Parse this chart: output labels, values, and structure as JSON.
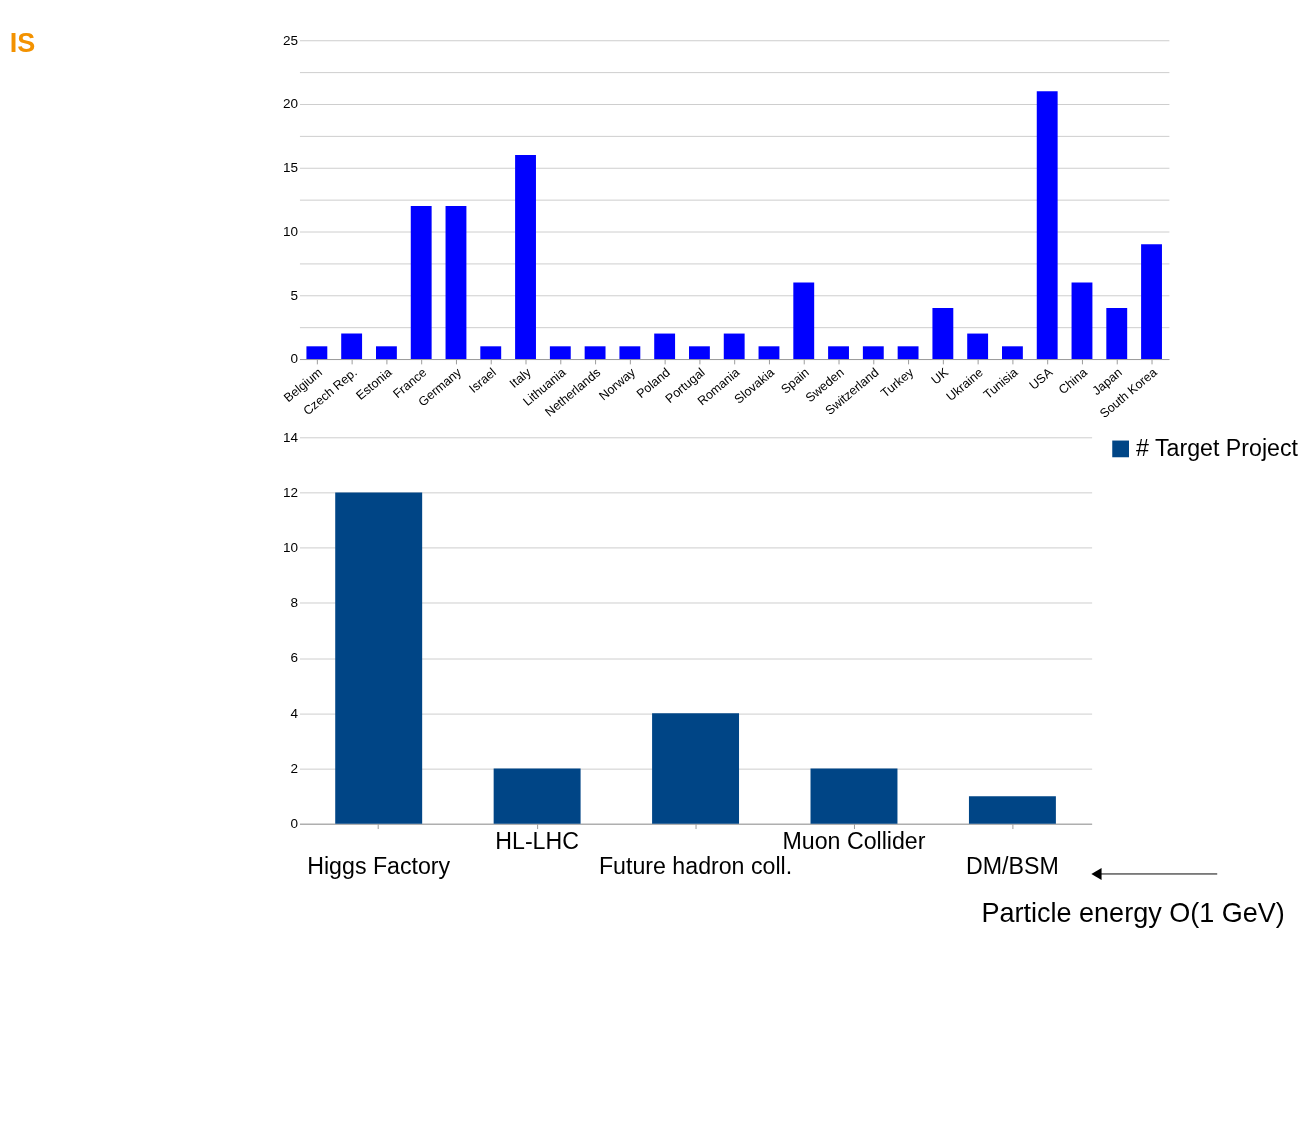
{
  "chart_data": [
    {
      "type": "bar",
      "categories": [
        "Belgium",
        "Czech Rep.",
        "Estonia",
        "France",
        "Germany",
        "Israel",
        "Italy",
        "Lithuania",
        "Netherlands",
        "Norway",
        "Poland",
        "Portugal",
        "Romania",
        "Slovakia",
        "Spain",
        "Sweden",
        "Switzerland",
        "Turkey",
        "UK",
        "Ukraine",
        "Tunisia",
        "USA",
        "China",
        "Japan",
        "South Korea"
      ],
      "series": [
        {
          "color": "#0000ff",
          "values": [
            1,
            2,
            1,
            12,
            12,
            1,
            16,
            1,
            1,
            1,
            2,
            1,
            2,
            1,
            6,
            1,
            1,
            1,
            4,
            2,
            1,
            21,
            6,
            4,
            9
          ]
        }
      ],
      "ylim": [
        0,
        25
      ],
      "yticks": [
        0,
        {
          "value": 2.5,
          "label": null
        },
        5,
        {
          "value": 7.5,
          "label": null
        },
        10,
        {
          "value": 12.5,
          "label": null
        },
        15,
        {
          "value": 17.5,
          "label": null
        },
        20,
        {
          "value": 22.5,
          "label": null
        },
        25
      ],
      "grid": "y",
      "legend": false,
      "annotations": [
        "IS"
      ]
    },
    {
      "type": "bar",
      "categories": [
        "Higgs Factory",
        "HL-LHC",
        "Future hadron coll.",
        "Muon Collider",
        "DM/BSM"
      ],
      "series": [
        {
          "name": "# Target Project",
          "color": "#004586",
          "values": [
            12,
            2,
            4,
            2,
            1
          ]
        }
      ],
      "ylim": [
        0,
        14
      ],
      "yticks": [
        0,
        2,
        4,
        6,
        8,
        10,
        12,
        14
      ],
      "grid": "y",
      "legend": "right",
      "annotations": [
        "Particle energy O(1 GeV)"
      ]
    }
  ]
}
